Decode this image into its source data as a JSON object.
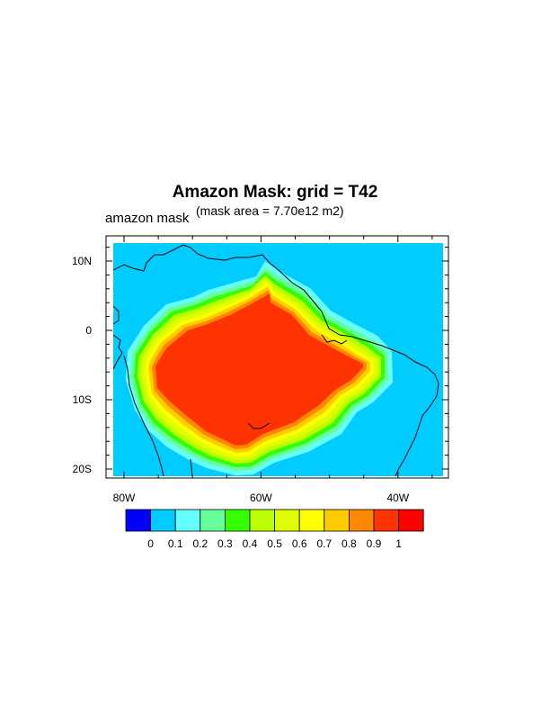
{
  "figure": {
    "title": "Amazon Mask: grid = T42",
    "subtitle": "(mask area = 7.70e12 m2)",
    "left_string": "amazon mask"
  },
  "map": {
    "projection": "cylindrical-equidistant",
    "lon_range": [
      -82,
      -34
    ],
    "lat_range": [
      -21,
      13
    ],
    "lon_ticks": [
      {
        "value": -80,
        "label": "80W"
      },
      {
        "value": -60,
        "label": "60W"
      },
      {
        "value": -40,
        "label": "40W"
      }
    ],
    "lat_ticks": [
      {
        "value": 10,
        "label": "10N"
      },
      {
        "value": 0,
        "label": "0"
      },
      {
        "value": -10,
        "label": "10S"
      },
      {
        "value": -20,
        "label": "20S"
      }
    ]
  },
  "colorbar": {
    "colors": [
      "#0000ff",
      "#00ccff",
      "#66ffff",
      "#66ff99",
      "#33ff00",
      "#bbff00",
      "#ddff00",
      "#ffff00",
      "#ffcc00",
      "#ff8800",
      "#ff3300",
      "#ff0000"
    ],
    "labels": [
      "0",
      "0.1",
      "0.2",
      "0.3",
      "0.4",
      "0.5",
      "0.6",
      "0.7",
      "0.8",
      "0.9",
      "1"
    ]
  }
}
